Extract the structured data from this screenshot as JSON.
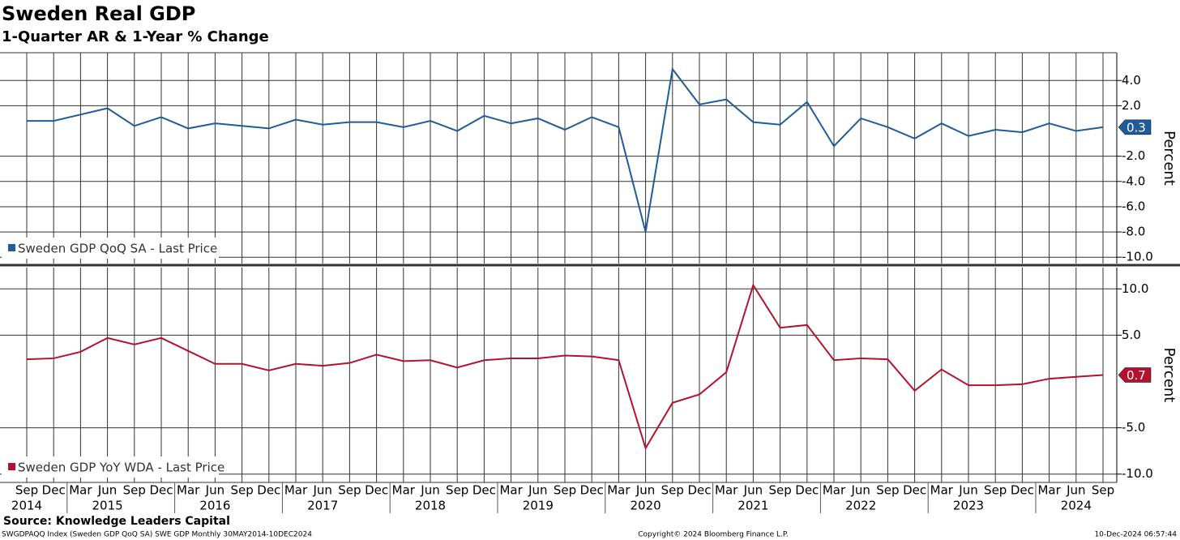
{
  "header": {
    "title": "Sweden Real GDP",
    "subtitle": "1-Quarter AR & 1-Year % Change"
  },
  "chart_data": [
    {
      "type": "line",
      "ylabel": "Percent",
      "ylim": [
        -10.5,
        6.2
      ],
      "yticks": [
        {
          "value": 4,
          "label": "4.0"
        },
        {
          "value": 2,
          "label": "2.0"
        },
        {
          "value": -2,
          "label": "-2.0"
        },
        {
          "value": -4,
          "label": "-4.0"
        },
        {
          "value": -6,
          "label": "-6.0"
        },
        {
          "value": -8,
          "label": "-8.0"
        },
        {
          "value": -10,
          "label": "-10.0"
        }
      ],
      "grid": true,
      "series": [
        {
          "name": "Sweden GDP QoQ SA - Last Price",
          "color": "#1f5c99",
          "last_value_label": "0.3",
          "values": [
            0.8,
            0.8,
            1.3,
            1.8,
            0.4,
            1.1,
            0.2,
            0.6,
            0.4,
            0.2,
            0.9,
            0.5,
            0.7,
            0.7,
            0.3,
            0.8,
            0.0,
            1.2,
            0.6,
            1.0,
            0.1,
            1.1,
            0.3,
            -8.0,
            4.9,
            2.1,
            2.5,
            0.7,
            0.5,
            2.3,
            -1.2,
            1.0,
            0.3,
            -0.6,
            0.6,
            -0.4,
            0.1,
            -0.1,
            0.6,
            0.0,
            0.3
          ]
        }
      ]
    },
    {
      "type": "line",
      "ylabel": "Percent",
      "ylim": [
        -10.9,
        12.3
      ],
      "yticks": [
        {
          "value": 10,
          "label": "10.0"
        },
        {
          "value": 5,
          "label": "5.0"
        },
        {
          "value": -5,
          "label": "-5.0"
        },
        {
          "value": -10,
          "label": "-10.0"
        }
      ],
      "grid": true,
      "categories": [
        "Sep",
        "Dec",
        "Mar",
        "Jun",
        "Sep",
        "Dec",
        "Mar",
        "Jun",
        "Sep",
        "Dec",
        "Mar",
        "Jun",
        "Sep",
        "Dec",
        "Mar",
        "Jun",
        "Sep",
        "Dec",
        "Mar",
        "Jun",
        "Sep",
        "Dec",
        "Mar",
        "Jun",
        "Sep",
        "Dec",
        "Mar",
        "Jun",
        "Sep",
        "Dec",
        "Mar",
        "Jun",
        "Sep",
        "Dec",
        "Mar",
        "Jun",
        "Sep",
        "Dec",
        "Mar",
        "Jun",
        "Sep"
      ],
      "years": [
        "2014",
        "2015",
        "2016",
        "2017",
        "2018",
        "2019",
        "2020",
        "2021",
        "2022",
        "2023",
        "2024"
      ],
      "series": [
        {
          "name": "Sweden GDP YoY WDA - Last Price",
          "color": "#b3122e",
          "last_value_label": "0.7",
          "values": [
            2.4,
            2.5,
            3.2,
            4.7,
            4.0,
            4.7,
            3.3,
            1.9,
            1.9,
            1.2,
            1.9,
            1.7,
            2.0,
            2.9,
            2.2,
            2.3,
            1.5,
            2.3,
            2.5,
            2.5,
            2.8,
            2.7,
            2.3,
            -7.2,
            -2.3,
            -1.4,
            1.0,
            10.4,
            5.8,
            6.1,
            2.3,
            2.5,
            2.4,
            -1.0,
            1.3,
            -0.4,
            -0.4,
            -0.3,
            0.3,
            0.5,
            0.7
          ]
        }
      ]
    }
  ],
  "footer": {
    "source": "Source: Knowledge Leaders Capital",
    "left": "SWGDPAQQ Index (Sweden GDP QoQ SA) SWE GDP  Monthly 30MAY2014-10DEC2024",
    "center": "Copyright© 2024 Bloomberg Finance L.P.",
    "right": "10-Dec-2024 06:57:44"
  }
}
